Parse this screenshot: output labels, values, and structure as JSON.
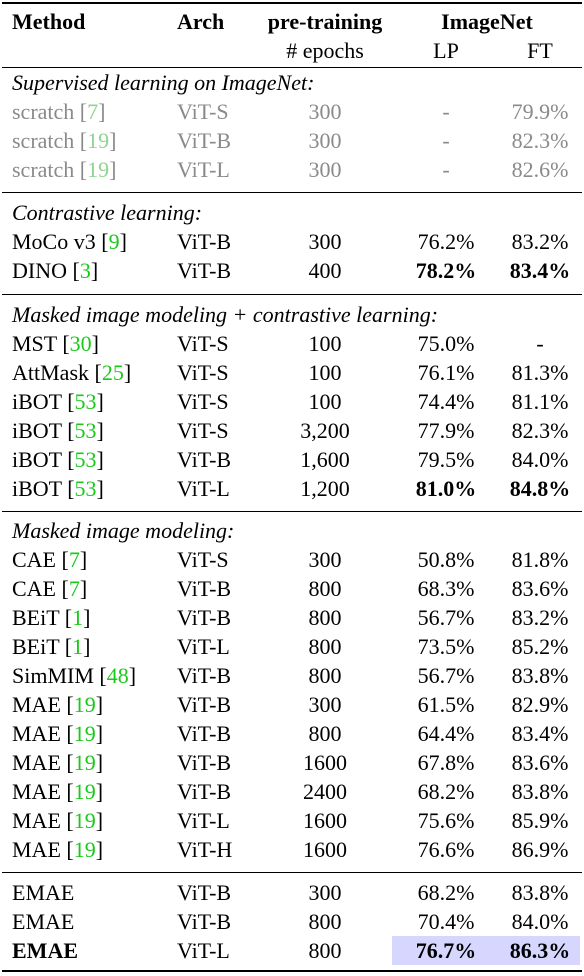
{
  "header": {
    "method": "Method",
    "arch": "Arch",
    "pretraining": "pre-training",
    "epochs": "# epochs",
    "imagenet": "ImageNet",
    "lp": "LP",
    "ft": "FT"
  },
  "sections": [
    {
      "title": "Supervised learning on ImageNet:",
      "rows": [
        {
          "method": "scratch",
          "ref": "7",
          "arch": "ViT-S",
          "epochs": "300",
          "lp": "-",
          "ft": "79.9%"
        },
        {
          "method": "scratch",
          "ref": "19",
          "arch": "ViT-B",
          "epochs": "300",
          "lp": "-",
          "ft": "82.3%"
        },
        {
          "method": "scratch",
          "ref": "19",
          "arch": "ViT-L",
          "epochs": "300",
          "lp": "-",
          "ft": "82.6%"
        }
      ]
    },
    {
      "title": "Contrastive learning:",
      "rows": [
        {
          "method": "MoCo v3",
          "ref": "9",
          "arch": "ViT-B",
          "epochs": "300",
          "lp": "76.2%",
          "ft": "83.2%"
        },
        {
          "method": "DINO",
          "ref": "3",
          "arch": "ViT-B",
          "epochs": "400",
          "lp": "78.2%",
          "ft": "83.4%"
        }
      ]
    },
    {
      "title": "Masked image modeling + contrastive learning:",
      "rows": [
        {
          "method": "MST",
          "ref": "30",
          "arch": "ViT-S",
          "epochs": "100",
          "lp": "75.0%",
          "ft": "-"
        },
        {
          "method": "AttMask",
          "ref": "25",
          "arch": "ViT-S",
          "epochs": "100",
          "lp": "76.1%",
          "ft": "81.3%"
        },
        {
          "method": "iBOT",
          "ref": "53",
          "arch": "ViT-S",
          "epochs": "100",
          "lp": "74.4%",
          "ft": "81.1%"
        },
        {
          "method": "iBOT",
          "ref": "53",
          "arch": "ViT-S",
          "epochs": "3,200",
          "lp": "77.9%",
          "ft": "82.3%"
        },
        {
          "method": "iBOT",
          "ref": "53",
          "arch": "ViT-B",
          "epochs": "1,600",
          "lp": "79.5%",
          "ft": "84.0%"
        },
        {
          "method": "iBOT",
          "ref": "53",
          "arch": "ViT-L",
          "epochs": "1,200",
          "lp": "81.0%",
          "ft": "84.8%"
        }
      ]
    },
    {
      "title": "Masked image modeling:",
      "rows": [
        {
          "method": "CAE",
          "ref": "7",
          "arch": "ViT-S",
          "epochs": "300",
          "lp": "50.8%",
          "ft": "81.8%"
        },
        {
          "method": "CAE",
          "ref": "7",
          "arch": "ViT-B",
          "epochs": "800",
          "lp": "68.3%",
          "ft": "83.6%"
        },
        {
          "method": "BEiT",
          "ref": "1",
          "arch": "ViT-B",
          "epochs": "800",
          "lp": "56.7%",
          "ft": "83.2%"
        },
        {
          "method": "BEiT",
          "ref": "1",
          "arch": "ViT-L",
          "epochs": "800",
          "lp": "73.5%",
          "ft": "85.2%"
        },
        {
          "method": "SimMIM",
          "ref": "48",
          "arch": "ViT-B",
          "epochs": "800",
          "lp": "56.7%",
          "ft": "83.8%"
        },
        {
          "method": "MAE",
          "ref": "19",
          "arch": "ViT-B",
          "epochs": "300",
          "lp": "61.5%",
          "ft": "82.9%"
        },
        {
          "method": "MAE",
          "ref": "19",
          "arch": "ViT-B",
          "epochs": "800",
          "lp": "64.4%",
          "ft": "83.4%"
        },
        {
          "method": "MAE",
          "ref": "19",
          "arch": "ViT-B",
          "epochs": "1600",
          "lp": "67.8%",
          "ft": "83.6%"
        },
        {
          "method": "MAE",
          "ref": "19",
          "arch": "ViT-B",
          "epochs": "2400",
          "lp": "68.2%",
          "ft": "83.8%"
        },
        {
          "method": "MAE",
          "ref": "19",
          "arch": "ViT-L",
          "epochs": "1600",
          "lp": "75.6%",
          "ft": "85.9%"
        },
        {
          "method": "MAE",
          "ref": "19",
          "arch": "ViT-H",
          "epochs": "1600",
          "lp": "76.6%",
          "ft": "86.9%"
        }
      ]
    },
    {
      "title": "",
      "rows": [
        {
          "method": "EMAE",
          "ref": "",
          "arch": "ViT-B",
          "epochs": "300",
          "lp": "68.2%",
          "ft": "83.8%"
        },
        {
          "method": "EMAE",
          "ref": "",
          "arch": "ViT-B",
          "epochs": "800",
          "lp": "70.4%",
          "ft": "84.0%"
        },
        {
          "method": "EMAE",
          "ref": "",
          "arch": "ViT-L",
          "epochs": "800",
          "lp": "76.7%",
          "ft": "86.3%"
        }
      ]
    }
  ],
  "highlight_color": "#d6d6ff",
  "reference_color": "#19c919",
  "muted_text_color": "#8a8a8a"
}
